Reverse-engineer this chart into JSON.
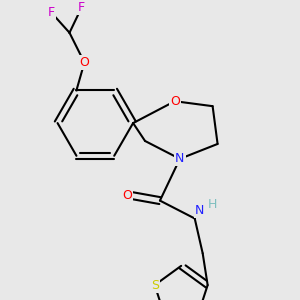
{
  "background_color": "#e8e8e8",
  "fig_size": [
    3.0,
    3.0
  ],
  "dpi": 100,
  "atom_colors": {
    "C": "#000000",
    "H": "#7fbfbf",
    "N": "#2020ff",
    "O": "#ff0000",
    "S": "#cccc00",
    "F": "#cc00cc"
  },
  "bond_color": "#000000",
  "bond_width": 1.5
}
